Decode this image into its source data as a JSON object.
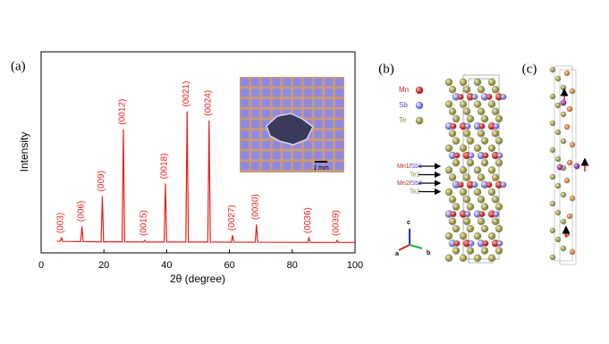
{
  "chart_data": {
    "type": "line",
    "panel_label": "(a)",
    "xlabel": "2θ (degree)",
    "ylabel": "Intensity",
    "xlim": [
      0,
      100
    ],
    "xticks": [
      0,
      20,
      40,
      60,
      80,
      100
    ],
    "ylim": [
      0,
      100
    ],
    "series": [
      {
        "color": "#e8201c",
        "x": [
          5,
          6.1,
          6.5,
          6.9,
          12.6,
          13,
          13.4,
          19.1,
          19.5,
          19.9,
          25.8,
          26.2,
          26.6,
          32.6,
          33,
          33.4,
          39.2,
          39.6,
          40,
          46.1,
          46.5,
          46.9,
          53.1,
          53.5,
          53.9,
          60.6,
          61,
          61.4,
          68.2,
          68.6,
          69,
          84.9,
          85.3,
          85.7,
          93.9,
          94.3,
          94.7,
          100
        ],
        "values": [
          5.8,
          5.8,
          7.5,
          5.7,
          5.6,
          13.3,
          5.6,
          5.5,
          28.3,
          5.5,
          5.5,
          61.5,
          5.5,
          5.4,
          6.2,
          5.4,
          5.4,
          34.5,
          5.4,
          5.4,
          70.4,
          5.4,
          5.4,
          65.9,
          5.4,
          5.3,
          8.8,
          5.3,
          5.3,
          14.2,
          5.3,
          5.2,
          7.5,
          5.2,
          5.2,
          6.2,
          5.2,
          5.2
        ]
      }
    ],
    "annotations": [
      {
        "text": "(003)",
        "x": 6.5
      },
      {
        "text": "(006)",
        "x": 13
      },
      {
        "text": "(009)",
        "x": 19.5
      },
      {
        "text": "(0012)",
        "x": 26.2
      },
      {
        "text": "(0015)",
        "x": 33
      },
      {
        "text": "(0018)",
        "x": 39.6
      },
      {
        "text": "(0021)",
        "x": 46.5
      },
      {
        "text": "(0024)",
        "x": 53.5
      },
      {
        "text": "(0027)",
        "x": 61
      },
      {
        "text": "(0030)",
        "x": 68.6
      },
      {
        "text": "(0036)",
        "x": 85.3
      },
      {
        "text": "(0039)",
        "x": 94.3
      }
    ],
    "inset_scale_label": "1 mm"
  },
  "panels": [
    {
      "label": "(b)",
      "legend": [
        "Mn",
        "Sb",
        "Te"
      ],
      "layer_labels": [
        [
          "Mn1",
          "/",
          "Sb1"
        ],
        [
          "Te1"
        ],
        [
          "Mn2",
          "/",
          "Sb2"
        ],
        [
          "Te2"
        ]
      ],
      "axes": [
        "c",
        "a",
        "b"
      ]
    },
    {
      "label": "(c)"
    }
  ]
}
